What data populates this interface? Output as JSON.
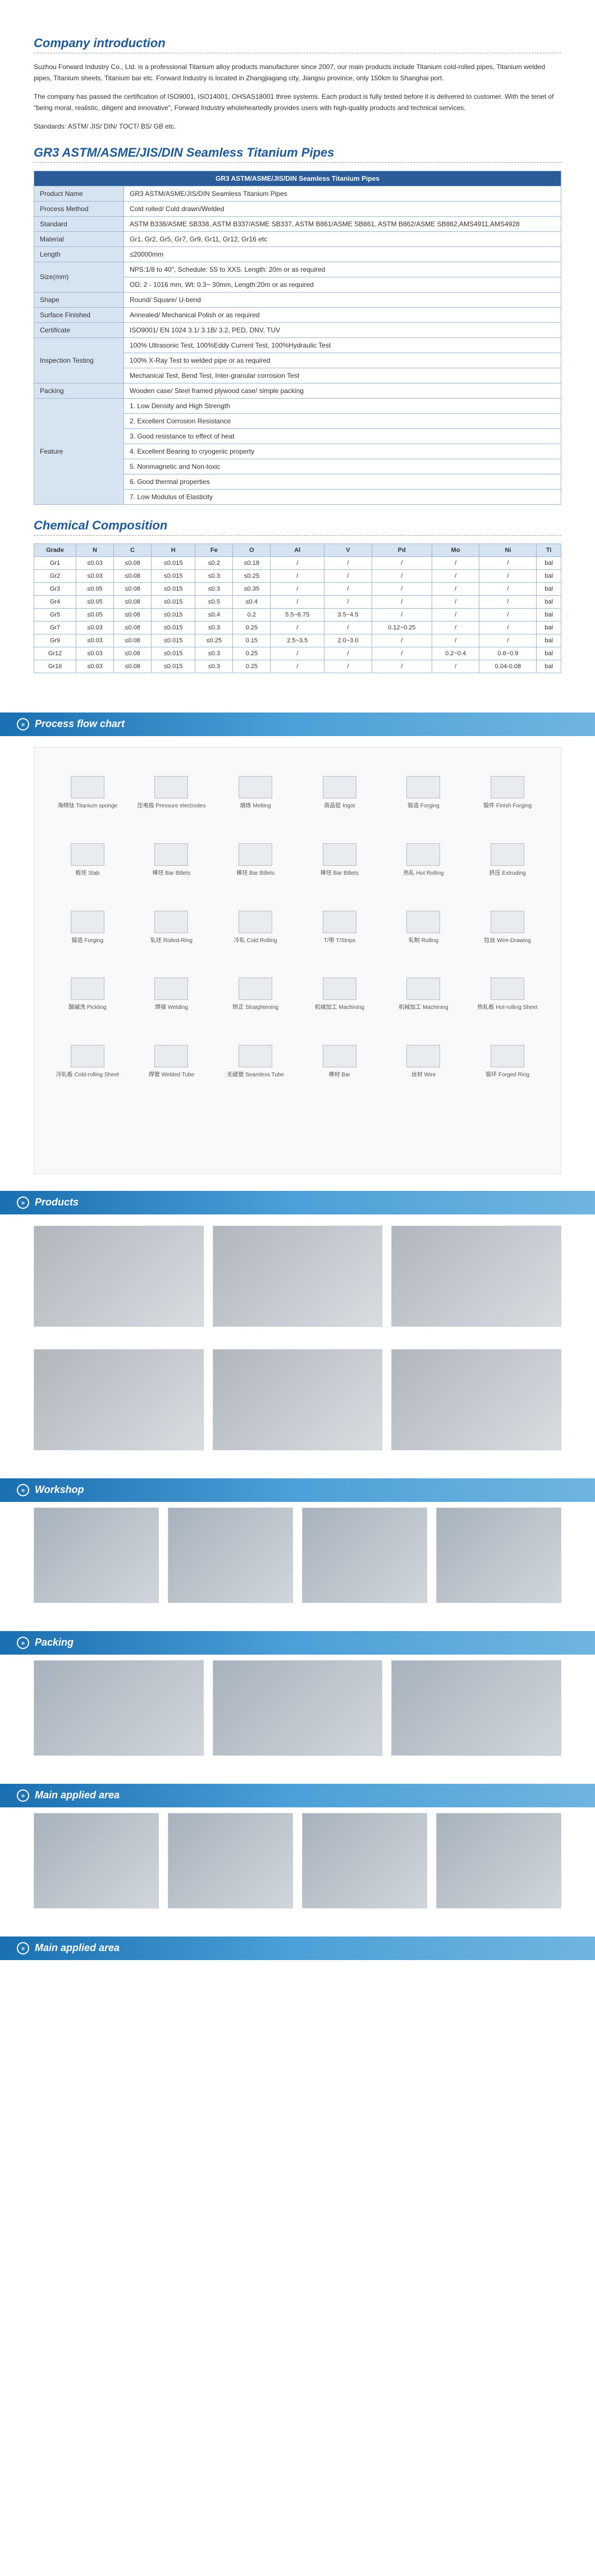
{
  "intro": {
    "title": "Company introduction",
    "p1": "Suzhou Forward Industry Co., Ltd. is a professional Titanium alloy products manufacturer since 2007, our main products include Titanium cold-rolled pipes, Titanium welded pipes, Titanium sheets, Titanium bar etc. Forward Industry is located in Zhangjiagang city, Jiangsu province, only 150km to Shanghai port.",
    "p2": "The company has passed the certification of ISO9001, ISO14001, OHSAS18001 three systems. Each product is fully tested before it is delivered to customer. With the tenet of \"being moral, realistic, diligent and innovative\", Forward Industry wholeheartedly provides users with high-quality products and technical services.",
    "p3": "Standards: ASTM/ JIS/ DIN/ TOCT/ BS/ GB etc."
  },
  "spec": {
    "title": "GR3 ASTM/ASME/JIS/DIN Seamless Titanium  Pipes",
    "header": "GR3 ASTM/ASME/JIS/DIN Seamless Titanium  Pipes",
    "rows": [
      {
        "label": "Product Name",
        "value": "GR3 ASTM/ASME/JIS/DIN Seamless Titanium  Pipes"
      },
      {
        "label": "Process Method",
        "value": "Cold rolled/ Cold drawn/Welded"
      },
      {
        "label": "Standard",
        "value": "ASTM B338/ASME SB338, ASTM B337/ASME SB337, ASTM B861/ASME SB861, ASTM B862/ASME SB862,AMS4911,AMS4928"
      },
      {
        "label": "Material",
        "value": "Gr1, Gr2, Gr5, Gr7, Gr9, Gr11, Gr12, Gr16 etc"
      },
      {
        "label": "Length",
        "value": "≤20000mm"
      },
      {
        "label": "Size(mm)",
        "value": "NPS:1/8 to 40\",  Schedule: 5S to XXS. Length: 20m or as required\nOD: 2 - 1016 mm, Wt: 0.3~ 30mm, Length:20m or as required"
      },
      {
        "label": "Shape",
        "value": "Round/ Square/ U-bend"
      },
      {
        "label": "Surface Finished",
        "value": "Annealed/ Mechanical Polish or as required"
      },
      {
        "label": "Certificate",
        "value": "ISO9001/  EN 1024 3.1/ 3.1B/ 3.2, PED, DNV, TUV"
      },
      {
        "label": "Inspection Testing",
        "value": "100% Ultrasonic Test, 100%Eddy Current Test, 100%Hydraulic Test\n100% X-Ray Test to welded pipe or as required\nMechanical Test, Bend Test, Inter-granular corrosion Test"
      },
      {
        "label": "Packing",
        "value": "Wooden case/ Steel framed plywood case/ simple packing"
      },
      {
        "label": "Feature",
        "value": "1. Low Density and High Strength\n2. Excellent Corrosion Resistance\n3. Good resistance to effect of heat\n4. Excellent Bearing to cryogenic property\n5. Nonmagnetic and Non-toxic\n6. Good thermal properties\n7. Low Modulus of Elasticity"
      }
    ]
  },
  "comp": {
    "title": "Chemical Composition",
    "headers": [
      "Grade",
      "N",
      "C",
      "H",
      "Fe",
      "O",
      "Al",
      "V",
      "Pd",
      "Mo",
      "Ni",
      "Ti"
    ],
    "rows": [
      [
        "Gr1",
        "≤0.03",
        "≤0.08",
        "≤0.015",
        "≤0.2",
        "≤0.18",
        "/",
        "/",
        "/",
        "/",
        "/",
        "bal"
      ],
      [
        "Gr2",
        "≤0.03",
        "≤0.08",
        "≤0.015",
        "≤0.3",
        "≤0.25",
        "/",
        "/",
        "/",
        "/",
        "/",
        "bal"
      ],
      [
        "Gr3",
        "≤0.05",
        "≤0.08",
        "≤0.015",
        "≤0.3",
        "≤0.35",
        "/",
        "/",
        "/",
        "/",
        "/",
        "bal"
      ],
      [
        "Gr4",
        "≤0.05",
        "≤0.08",
        "≤0.015",
        "≤0.5",
        "≤0.4",
        "/",
        "/",
        "/",
        "/",
        "/",
        "bal"
      ],
      [
        "Gr5",
        "≤0.05",
        "≤0.08",
        "≤0.015",
        "≤0.4",
        "0.2",
        "5.5~6.75",
        "3.5~4.5",
        "/",
        "/",
        "/",
        "bal"
      ],
      [
        "Gr7",
        "≤0.03",
        "≤0.08",
        "≤0.015",
        "≤0.3",
        "0.25",
        "/",
        "/",
        "0.12~0.25",
        "/",
        "/",
        "bal"
      ],
      [
        "Gr9",
        "≤0.03",
        "≤0.08",
        "≤0.015",
        "≤0.25",
        "0.15",
        "2.5~3.5",
        "2.0~3.0",
        "/",
        "/",
        "/",
        "bal"
      ],
      [
        "Gr12",
        "≤0.03",
        "≤0.08",
        "≤0.015",
        "≤0.3",
        "0.25",
        "/",
        "/",
        "/",
        "0.2~0.4",
        "0.6~0.9",
        "bal"
      ],
      [
        "Gr16",
        "≤0.03",
        "≤0.08",
        "≤0.015",
        "≤0.3",
        "0.25",
        "/",
        "/",
        "/",
        "/",
        "0.04-0.08",
        "bal"
      ]
    ]
  },
  "banners": {
    "flow": "Process flow chart",
    "products": "Products",
    "workshop": "Workshop",
    "packing": "Packing",
    "applied1": "Main applied area",
    "applied2": "Main applied area"
  },
  "flow_nodes": [
    "海绵钛 Titanium sponge",
    "压电极 Pressure electrodes",
    "熔炼 Melting",
    "商品锭 Ingot",
    "锻造 Forging",
    "锻件 Finish Forging",
    "板坯 Slab",
    "棒坯 Bar Billets",
    "棒坯 Bar Billets",
    "棒坯 Bar Billets",
    "热轧 Hot Rolling",
    "挤压 Extruding",
    "锻造 Forging",
    "轧坯 Rolled-Ring",
    "冷轧 Cold Rolling",
    "T/带 T/Strips",
    "轧制 Rolling",
    "拉丝 Wire-Drawing",
    "酸碱洗 Pickling",
    "焊接 Welding",
    "矫正 Straightening",
    "机械加工 Machining",
    "机械加工 Machining",
    "热轧板 Hot-rolling Sheet",
    "冷轧板 Cold-rolling Sheet",
    "焊管 Welded Tube",
    "无缝管 Seamless Tube",
    "棒材 Bar",
    "丝材 Wire",
    "锻环 Forged Ring"
  ],
  "colors": {
    "title": "#1e5a9e",
    "banner_start": "#1a6fb0",
    "banner_end": "#6fb5e0",
    "table_header_bg": "#2a5c9a",
    "table_label_bg": "#d6e4f2",
    "border": "#a0b8d0"
  }
}
